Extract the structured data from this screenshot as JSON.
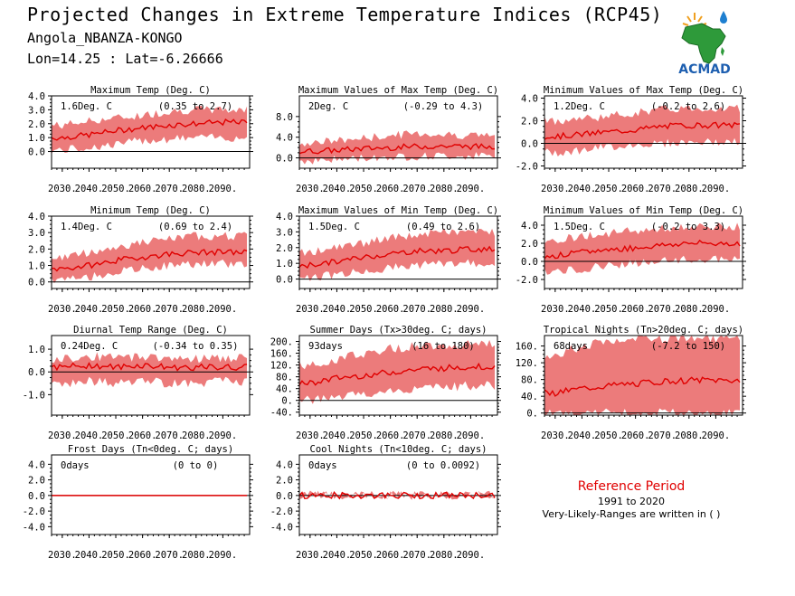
{
  "header": {
    "title": "Projected Changes in Extreme Temperature Indices (RCP45)",
    "location": "Angola_NBANZA-KONGO",
    "coords": "Lon=14.25 : Lat=-6.26666"
  },
  "logo": {
    "text": "ACMAD",
    "icon": "africa-map-logo-icon"
  },
  "reference": {
    "title": "Reference Period",
    "years": "1991 to 2020",
    "note": "Very-Likely-Ranges are written in ( )"
  },
  "colors": {
    "band": "#ec7b7b",
    "median": "#e00000",
    "axis": "#000000",
    "title_red": "#e00000"
  },
  "chart_data": [
    {
      "type": "area",
      "title": "Maximum Temp (Deg. C)",
      "change": "1.6Deg. C",
      "range": "(0.35 to 2.7)",
      "x": [
        2030,
        2040,
        2050,
        2060,
        2070,
        2080,
        2090
      ],
      "xticklabels": [
        "2030.",
        "2040.",
        "2050.",
        "2060.",
        "2070.",
        "2080.",
        "2090."
      ],
      "xlim": [
        2026,
        2100
      ],
      "ylim": [
        -1.2,
        4.0
      ],
      "yticks": [
        0.0,
        1.0,
        2.0,
        3.0,
        4.0
      ],
      "yticklabels": [
        "0.0",
        "1.0",
        "2.0",
        "3.0",
        "4.0"
      ],
      "series": [
        {
          "name": "median",
          "values": [
            1.0,
            1.2,
            1.5,
            1.7,
            1.9,
            2.0,
            2.1
          ]
        },
        {
          "name": "lower",
          "values": [
            0.1,
            0.3,
            0.5,
            0.8,
            0.9,
            1.0,
            1.0
          ]
        },
        {
          "name": "upper",
          "values": [
            1.9,
            2.2,
            2.4,
            2.6,
            2.9,
            3.0,
            3.0
          ]
        }
      ]
    },
    {
      "type": "area",
      "title": "Maximum Values of Max Temp (Deg. C)",
      "change": "2Deg. C",
      "range": "(-0.29 to 4.3)",
      "x": [
        2030,
        2040,
        2050,
        2060,
        2070,
        2080,
        2090
      ],
      "xticklabels": [
        "2030.",
        "2040.",
        "2050.",
        "2060.",
        "2070.",
        "2080.",
        "2090."
      ],
      "xlim": [
        2026,
        2100
      ],
      "ylim": [
        -2.0,
        12.0
      ],
      "yticks": [
        0.0,
        4.0,
        8.0
      ],
      "yticklabels": [
        "0.0",
        "4.0",
        "8.0"
      ],
      "series": [
        {
          "name": "median",
          "values": [
            1.3,
            1.5,
            1.8,
            2.0,
            2.2,
            2.3,
            2.2
          ]
        },
        {
          "name": "lower",
          "values": [
            -0.5,
            -0.3,
            0.0,
            0.2,
            0.3,
            0.4,
            0.4
          ]
        },
        {
          "name": "upper",
          "values": [
            3.0,
            3.3,
            3.8,
            4.3,
            4.8,
            4.5,
            4.4
          ]
        }
      ]
    },
    {
      "type": "area",
      "title": "Minimum Values of Max Temp (Deg. C)",
      "change": "1.2Deg. C",
      "range": "(-0.2 to 2.6)",
      "x": [
        2030,
        2040,
        2050,
        2060,
        2070,
        2080,
        2090
      ],
      "xticklabels": [
        "2030.",
        "2040.",
        "2050.",
        "2060.",
        "2070.",
        "2080.",
        "2090."
      ],
      "xlim": [
        2026,
        2100
      ],
      "ylim": [
        -2.2,
        4.2
      ],
      "yticks": [
        -2.0,
        0.0,
        2.0,
        4.0
      ],
      "yticklabels": [
        "-2.0",
        "0.0",
        "2.0",
        "4.0"
      ],
      "series": [
        {
          "name": "median",
          "values": [
            0.6,
            0.8,
            1.0,
            1.2,
            1.5,
            1.6,
            1.6
          ]
        },
        {
          "name": "lower",
          "values": [
            -0.8,
            -0.6,
            -0.3,
            -0.1,
            0.0,
            0.1,
            0.1
          ]
        },
        {
          "name": "upper",
          "values": [
            2.0,
            2.2,
            2.4,
            2.7,
            3.0,
            3.1,
            3.1
          ]
        }
      ]
    },
    {
      "type": "area",
      "title": "Minimum Temp (Deg. C)",
      "change": "1.4Deg. C",
      "range": "(0.69 to 2.4)",
      "x": [
        2030,
        2040,
        2050,
        2060,
        2070,
        2080,
        2090
      ],
      "xticklabels": [
        "2030.",
        "2040.",
        "2050.",
        "2060.",
        "2070.",
        "2080.",
        "2090."
      ],
      "xlim": [
        2026,
        2100
      ],
      "ylim": [
        -0.4,
        4.0
      ],
      "yticks": [
        0.0,
        1.0,
        2.0,
        3.0,
        4.0
      ],
      "yticklabels": [
        "0.0",
        "1.0",
        "2.0",
        "3.0",
        "4.0"
      ],
      "series": [
        {
          "name": "median",
          "values": [
            0.8,
            1.0,
            1.3,
            1.5,
            1.7,
            1.8,
            1.8
          ]
        },
        {
          "name": "lower",
          "values": [
            0.1,
            0.3,
            0.6,
            0.8,
            1.0,
            1.1,
            1.1
          ]
        },
        {
          "name": "upper",
          "values": [
            1.5,
            1.8,
            2.1,
            2.4,
            2.6,
            2.8,
            2.8
          ]
        }
      ]
    },
    {
      "type": "area",
      "title": "Maximum Values of Min Temp (Deg. C)",
      "change": "1.5Deg. C",
      "range": "(0.49 to 2.6)",
      "x": [
        2030,
        2040,
        2050,
        2060,
        2070,
        2080,
        2090
      ],
      "xticklabels": [
        "2030.",
        "2040.",
        "2050.",
        "2060.",
        "2070.",
        "2080.",
        "2090."
      ],
      "xlim": [
        2026,
        2100
      ],
      "ylim": [
        -0.6,
        4.0
      ],
      "yticks": [
        0.0,
        1.0,
        2.0,
        3.0,
        4.0
      ],
      "yticklabels": [
        "0.0",
        "1.0",
        "2.0",
        "3.0",
        "4.0"
      ],
      "series": [
        {
          "name": "median",
          "values": [
            0.9,
            1.1,
            1.4,
            1.6,
            1.8,
            1.8,
            1.9
          ]
        },
        {
          "name": "lower",
          "values": [
            0.1,
            0.3,
            0.5,
            0.7,
            0.9,
            1.0,
            1.0
          ]
        },
        {
          "name": "upper",
          "values": [
            1.7,
            2.0,
            2.3,
            2.6,
            2.8,
            3.0,
            3.0
          ]
        }
      ]
    },
    {
      "type": "area",
      "title": "Minimum Values of Min Temp (Deg. C)",
      "change": "1.5Deg. C",
      "range": "(-0.2 to 3.3)",
      "x": [
        2030,
        2040,
        2050,
        2060,
        2070,
        2080,
        2090
      ],
      "xticklabels": [
        "2030.",
        "2040.",
        "2050.",
        "2060.",
        "2070.",
        "2080.",
        "2090."
      ],
      "xlim": [
        2026,
        2100
      ],
      "ylim": [
        -3.0,
        5.0
      ],
      "yticks": [
        -2.0,
        0.0,
        2.0,
        4.0
      ],
      "yticklabels": [
        "-2.0",
        "0.0",
        "2.0",
        "4.0"
      ],
      "series": [
        {
          "name": "median",
          "values": [
            0.6,
            1.0,
            1.3,
            1.5,
            1.8,
            2.0,
            2.0
          ]
        },
        {
          "name": "lower",
          "values": [
            -1.2,
            -0.8,
            -0.4,
            -0.2,
            0.0,
            0.2,
            0.2
          ]
        },
        {
          "name": "upper",
          "values": [
            2.4,
            2.8,
            3.1,
            3.4,
            3.6,
            3.8,
            3.8
          ]
        }
      ]
    },
    {
      "type": "area",
      "title": "Diurnal Temp Range (Deg. C)",
      "change": "0.24Deg. C",
      "range": "(-0.34 to 0.35)",
      "x": [
        2030,
        2040,
        2050,
        2060,
        2070,
        2080,
        2090
      ],
      "xticklabels": [
        "2030.",
        "2040.",
        "2050.",
        "2060.",
        "2070.",
        "2080.",
        "2090."
      ],
      "xlim": [
        2026,
        2100
      ],
      "ylim": [
        -1.9,
        1.6
      ],
      "yticks": [
        -1.0,
        0.0,
        1.0
      ],
      "yticklabels": [
        "-1.0",
        "0.0",
        "1.0"
      ],
      "series": [
        {
          "name": "median",
          "values": [
            0.2,
            0.3,
            0.2,
            0.3,
            0.2,
            0.2,
            0.2
          ]
        },
        {
          "name": "lower",
          "values": [
            -0.5,
            -0.4,
            -0.5,
            -0.4,
            -0.5,
            -0.5,
            -0.4
          ]
        },
        {
          "name": "upper",
          "values": [
            0.6,
            0.7,
            0.6,
            0.7,
            0.6,
            0.6,
            0.6
          ]
        }
      ]
    },
    {
      "type": "area",
      "title": "Summer Days (Tx>30deg. C; days)",
      "change": "93days",
      "range": "(16 to 180)",
      "x": [
        2030,
        2040,
        2050,
        2060,
        2070,
        2080,
        2090
      ],
      "xticklabels": [
        "2030.",
        "2040.",
        "2050.",
        "2060.",
        "2070.",
        "2080.",
        "2090."
      ],
      "xlim": [
        2026,
        2100
      ],
      "ylim": [
        -50,
        220
      ],
      "yticks": [
        -40,
        0,
        40,
        80,
        120,
        160,
        200
      ],
      "yticklabels": [
        "-40.",
        "0.",
        "40.",
        "80.",
        "120.",
        "160.",
        "200."
      ],
      "series": [
        {
          "name": "median",
          "values": [
            60,
            75,
            85,
            95,
            105,
            110,
            115
          ]
        },
        {
          "name": "lower",
          "values": [
            0,
            10,
            20,
            30,
            40,
            45,
            50
          ]
        },
        {
          "name": "upper",
          "values": [
            120,
            140,
            160,
            175,
            185,
            190,
            190
          ]
        }
      ]
    },
    {
      "type": "area",
      "title": "Tropical Nights (Tn>20deg. C; days)",
      "change": "68days",
      "range": "(-7.2 to 150)",
      "x": [
        2030,
        2040,
        2050,
        2060,
        2070,
        2080,
        2090
      ],
      "xticklabels": [
        "2030.",
        "2040.",
        "2050.",
        "2060.",
        "2070.",
        "2080.",
        "2090."
      ],
      "xlim": [
        2026,
        2100
      ],
      "ylim": [
        -5,
        185
      ],
      "yticks": [
        0,
        40,
        80,
        120,
        160
      ],
      "yticklabels": [
        "0.",
        "40.",
        "80.",
        "120.",
        "160."
      ],
      "series": [
        {
          "name": "median",
          "values": [
            48,
            58,
            65,
            70,
            75,
            78,
            78
          ]
        },
        {
          "name": "lower",
          "values": [
            0,
            0,
            0,
            0,
            0,
            0,
            0
          ]
        },
        {
          "name": "upper",
          "values": [
            140,
            160,
            170,
            175,
            178,
            180,
            180
          ]
        }
      ]
    },
    {
      "type": "area",
      "title": "Frost Days (Tn<0deg. C; days)",
      "change": "0days",
      "range": "(0 to 0)",
      "x": [
        2030,
        2040,
        2050,
        2060,
        2070,
        2080,
        2090
      ],
      "xticklabels": [
        "2030.",
        "2040.",
        "2050.",
        "2060.",
        "2070.",
        "2080.",
        "2090."
      ],
      "xlim": [
        2026,
        2100
      ],
      "ylim": [
        -5.0,
        5.2
      ],
      "yticks": [
        -4.0,
        -2.0,
        0.0,
        2.0,
        4.0
      ],
      "yticklabels": [
        "-4.0",
        "-2.0",
        "0.0",
        "2.0",
        "4.0"
      ],
      "series": [
        {
          "name": "median",
          "values": [
            0,
            0,
            0,
            0,
            0,
            0,
            0
          ]
        },
        {
          "name": "lower",
          "values": [
            0,
            0,
            0,
            0,
            0,
            0,
            0
          ]
        },
        {
          "name": "upper",
          "values": [
            0,
            0,
            0,
            0,
            0,
            0,
            0
          ]
        }
      ]
    },
    {
      "type": "area",
      "title": "Cool Nights (Tn<10deg. C; days)",
      "change": "0days",
      "range": "(0 to 0.0092)",
      "x": [
        2030,
        2040,
        2050,
        2060,
        2070,
        2080,
        2090
      ],
      "xticklabels": [
        "2030.",
        "2040.",
        "2050.",
        "2060.",
        "2070.",
        "2080.",
        "2090."
      ],
      "xlim": [
        2026,
        2100
      ],
      "ylim": [
        -5.0,
        5.2
      ],
      "yticks": [
        -4.0,
        -2.0,
        0.0,
        2.0,
        4.0
      ],
      "yticklabels": [
        "-4.0",
        "-2.0",
        "0.0",
        "2.0",
        "4.0"
      ],
      "series": [
        {
          "name": "median",
          "values": [
            0,
            0,
            0,
            0,
            0,
            0,
            0
          ]
        },
        {
          "name": "lower",
          "values": [
            0,
            0,
            0,
            0,
            0,
            0,
            0
          ]
        },
        {
          "name": "upper",
          "values": [
            0.01,
            0,
            0,
            0,
            0,
            0,
            0
          ]
        }
      ]
    }
  ]
}
